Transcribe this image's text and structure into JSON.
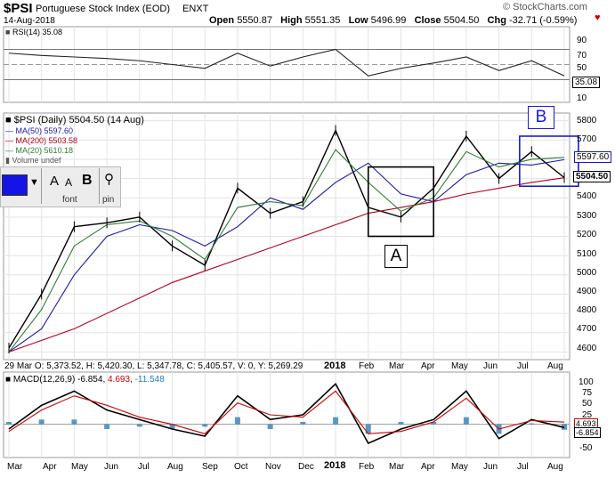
{
  "header": {
    "symbol": "$PSI",
    "name": "Portuguese Stock Index (EOD)",
    "exchange": "ENXT",
    "date": "14-Aug-2018",
    "open_label": "Open",
    "open": "5550.87",
    "high_label": "High",
    "high": "5551.35",
    "low_label": "Low",
    "low": "5496.99",
    "close_label": "Close",
    "close": "5504.50",
    "chg_label": "Chg",
    "chg": "-32.71 (-0.59%)",
    "brand": "© StockCharts.com"
  },
  "rsi": {
    "label": "RSI(14) 35.08",
    "value_tag": "35.08",
    "ticks": [
      "90",
      "70",
      "50",
      "30",
      "10"
    ]
  },
  "price": {
    "label": "$PSI (Daily) 5504.50 (14 Aug)",
    "legend": [
      {
        "text": "MA(50) 5597.60",
        "color": "#1a1aa6"
      },
      {
        "text": "MA(200) 5503.58",
        "color": "#b00020"
      },
      {
        "text": "MA(20) 5610.18",
        "color": "#2e7d32"
      },
      {
        "text": "Volume undef",
        "color": "#555555"
      }
    ],
    "ticks": [
      "5800",
      "5700",
      "5600",
      "5500",
      "5400",
      "5300",
      "5200",
      "5100",
      "5000",
      "4900",
      "4800",
      "4700",
      "4600"
    ],
    "tag_ma50": "5597.60",
    "tag_close": "5504.50",
    "annotations": [
      "A",
      "B"
    ],
    "ohlc_footer": [
      "29 Mar O: 5,373.52",
      "H: 5,420.30",
      "L: 5,347.78",
      "C: 5,405.57",
      "V: 0",
      "Y: 5,269.29"
    ],
    "mid_x_labels": [
      "2018",
      "Feb",
      "Mar",
      "Apr",
      "May",
      "Jun",
      "Jul",
      "Aug"
    ]
  },
  "toolbar": {
    "color_swatch": "#1414e6",
    "font_label": "font",
    "pin_label": "pin",
    "bold_label": "B",
    "font_big": "A",
    "font_small": "A"
  },
  "macd": {
    "label_prefix": "MACD(12,26,9)",
    "value1": "-6.854",
    "value2": "4.693",
    "value3": "-11.548",
    "ticks": [
      "100",
      "75",
      "50",
      "25",
      "0",
      "-25",
      "-50"
    ],
    "tag_signal": "4.693",
    "tag_macd": "-6.854"
  },
  "x_axis": {
    "labels": [
      "Mar",
      "Apr",
      "May",
      "Jun",
      "Jul",
      "Aug",
      "Sep",
      "Oct",
      "Nov",
      "Dec",
      "2018",
      "Feb",
      "Mar",
      "Apr",
      "May",
      "Jun",
      "Jul",
      "Aug"
    ]
  },
  "chart_data": {
    "type": "line",
    "title": "$PSI Portuguese Stock Index (EOD)",
    "x": [
      "2017-03",
      "2017-04",
      "2017-05",
      "2017-06",
      "2017-07",
      "2017-08",
      "2017-09",
      "2017-10",
      "2017-11",
      "2017-12",
      "2018-01",
      "2018-02",
      "2018-03",
      "2018-04",
      "2018-05",
      "2018-06",
      "2018-07",
      "2018-08"
    ],
    "series": [
      {
        "name": "$PSI",
        "values": [
          4620,
          4900,
          5250,
          5270,
          5300,
          5150,
          5050,
          5450,
          5320,
          5380,
          5750,
          5350,
          5300,
          5450,
          5720,
          5500,
          5640,
          5505
        ]
      },
      {
        "name": "MA(50)",
        "values": [
          4600,
          4720,
          5000,
          5200,
          5260,
          5230,
          5150,
          5250,
          5400,
          5340,
          5480,
          5580,
          5420,
          5380,
          5520,
          5580,
          5570,
          5598
        ]
      },
      {
        "name": "MA(200)",
        "values": [
          4600,
          4660,
          4720,
          4800,
          4880,
          4960,
          5020,
          5080,
          5140,
          5200,
          5260,
          5320,
          5350,
          5380,
          5420,
          5450,
          5480,
          5504
        ]
      },
      {
        "name": "MA(20)",
        "values": [
          4600,
          4820,
          5150,
          5260,
          5280,
          5200,
          5080,
          5350,
          5380,
          5360,
          5650,
          5480,
          5330,
          5400,
          5640,
          5560,
          5600,
          5610
        ]
      }
    ],
    "ylim": [
      4560,
      5840
    ],
    "rsi": {
      "ylim": [
        0,
        100
      ],
      "values": [
        65,
        62,
        60,
        58,
        55,
        50,
        45,
        65,
        48,
        60,
        70,
        35,
        45,
        52,
        60,
        42,
        55,
        35
      ]
    },
    "macd": {
      "ylim": [
        -70,
        110
      ],
      "macd": [
        -10,
        40,
        70,
        30,
        10,
        -10,
        -25,
        60,
        10,
        20,
        85,
        -40,
        -10,
        10,
        70,
        -30,
        10,
        -6.854
      ],
      "signal": [
        -15,
        30,
        60,
        40,
        15,
        0,
        -20,
        45,
        20,
        15,
        70,
        -20,
        -15,
        5,
        55,
        -10,
        8,
        4.693
      ]
    },
    "annotations": [
      {
        "label": "A",
        "x_start": "2018-02",
        "x_end": "2018-04",
        "y_low": 5200,
        "y_high": 5560
      },
      {
        "label": "B",
        "x_start": "2018-06-20",
        "x_end": "2018-08-14",
        "y_low": 5460,
        "y_high": 5720
      }
    ],
    "grid": true
  }
}
